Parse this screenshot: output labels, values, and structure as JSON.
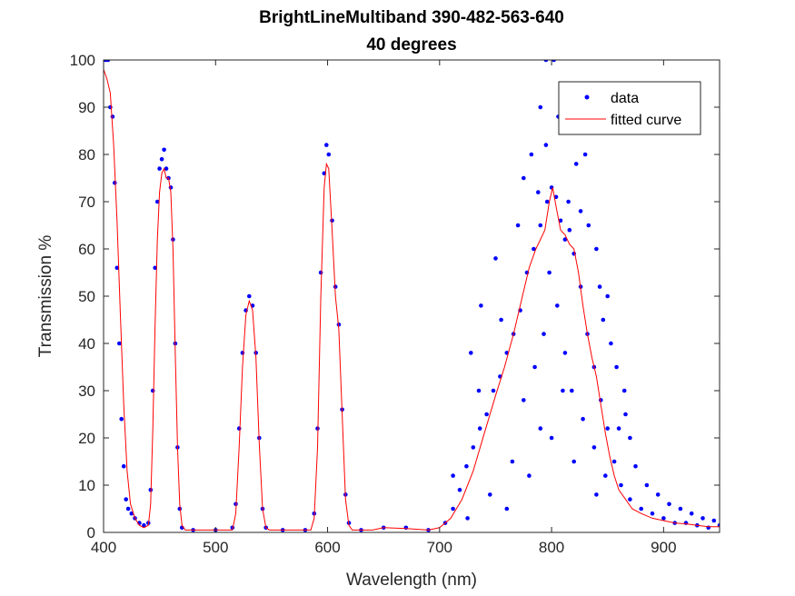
{
  "chart_data": {
    "type": "scatter",
    "title": [
      "BrightLineMultiband 390-482-563-640",
      "40 degrees"
    ],
    "xlabel": "Wavelength (nm)",
    "ylabel": "Transmission %",
    "xlim": [
      400,
      950
    ],
    "ylim": [
      0,
      100
    ],
    "xticks": [
      "400",
      "500",
      "600",
      "700",
      "800",
      "900"
    ],
    "yticks": [
      "0",
      "10",
      "20",
      "30",
      "40",
      "50",
      "60",
      "70",
      "80",
      "90",
      "100"
    ],
    "grid": false,
    "legend": {
      "placement": "top-right",
      "entries": [
        "data",
        "fitted curve"
      ]
    },
    "colors": {
      "data": "#0000ff",
      "fit": "#ff0000"
    },
    "series": [
      {
        "name": "data",
        "kind": "markers",
        "points": [
          [
            400,
            100
          ],
          [
            402,
            100
          ],
          [
            404,
            100
          ],
          [
            406,
            90
          ],
          [
            408,
            88
          ],
          [
            410,
            74
          ],
          [
            412,
            56
          ],
          [
            414,
            40
          ],
          [
            416,
            24
          ],
          [
            418,
            14
          ],
          [
            420,
            7
          ],
          [
            422,
            5
          ],
          [
            425,
            4
          ],
          [
            428,
            3
          ],
          [
            432,
            2
          ],
          [
            436,
            1.5
          ],
          [
            440,
            2
          ],
          [
            442,
            9
          ],
          [
            444,
            30
          ],
          [
            446,
            56
          ],
          [
            448,
            70
          ],
          [
            450,
            77
          ],
          [
            452,
            79
          ],
          [
            454,
            81
          ],
          [
            456,
            77
          ],
          [
            458,
            75
          ],
          [
            460,
            73
          ],
          [
            462,
            62
          ],
          [
            464,
            40
          ],
          [
            466,
            18
          ],
          [
            468,
            5
          ],
          [
            470,
            1
          ],
          [
            480,
            0.5
          ],
          [
            500,
            0.5
          ],
          [
            515,
            1
          ],
          [
            518,
            6
          ],
          [
            521,
            22
          ],
          [
            524,
            38
          ],
          [
            527,
            47
          ],
          [
            530,
            50
          ],
          [
            533,
            48
          ],
          [
            536,
            38
          ],
          [
            539,
            20
          ],
          [
            542,
            5
          ],
          [
            545,
            1
          ],
          [
            560,
            0.5
          ],
          [
            580,
            0.5
          ],
          [
            588,
            4
          ],
          [
            591,
            22
          ],
          [
            594,
            55
          ],
          [
            597,
            76
          ],
          [
            599,
            82
          ],
          [
            601,
            80
          ],
          [
            604,
            66
          ],
          [
            607,
            52
          ],
          [
            610,
            44
          ],
          [
            613,
            26
          ],
          [
            616,
            8
          ],
          [
            619,
            2
          ],
          [
            630,
            0.5
          ],
          [
            650,
            1
          ],
          [
            670,
            1
          ],
          [
            690,
            0.5
          ],
          [
            705,
            2
          ],
          [
            712,
            5
          ],
          [
            718,
            9
          ],
          [
            724,
            14
          ],
          [
            730,
            18
          ],
          [
            736,
            22
          ],
          [
            742,
            25
          ],
          [
            748,
            30
          ],
          [
            754,
            33
          ],
          [
            760,
            38
          ],
          [
            766,
            42
          ],
          [
            772,
            47
          ],
          [
            778,
            55
          ],
          [
            784,
            60
          ],
          [
            790,
            65
          ],
          [
            796,
            70
          ],
          [
            800,
            73
          ],
          [
            804,
            71
          ],
          [
            808,
            66
          ],
          [
            812,
            62
          ],
          [
            816,
            64
          ],
          [
            820,
            59
          ],
          [
            826,
            52
          ],
          [
            832,
            42
          ],
          [
            838,
            35
          ],
          [
            844,
            28
          ],
          [
            850,
            22
          ],
          [
            856,
            15
          ],
          [
            862,
            10
          ],
          [
            870,
            7
          ],
          [
            880,
            5
          ],
          [
            890,
            4
          ],
          [
            900,
            3
          ],
          [
            910,
            2
          ],
          [
            920,
            2
          ],
          [
            930,
            1.5
          ],
          [
            940,
            1
          ],
          [
            950,
            1.5
          ],
          [
            712,
            12
          ],
          [
            725,
            3
          ],
          [
            735,
            30
          ],
          [
            745,
            8
          ],
          [
            755,
            45
          ],
          [
            765,
            15
          ],
          [
            770,
            65
          ],
          [
            775,
            28
          ],
          [
            782,
            80
          ],
          [
            785,
            35
          ],
          [
            790,
            90
          ],
          [
            793,
            42
          ],
          [
            795,
            100
          ],
          [
            798,
            55
          ],
          [
            802,
            100
          ],
          [
            805,
            48
          ],
          [
            808,
            95
          ],
          [
            812,
            38
          ],
          [
            815,
            85
          ],
          [
            818,
            30
          ],
          [
            822,
            78
          ],
          [
            828,
            24
          ],
          [
            833,
            65
          ],
          [
            838,
            18
          ],
          [
            843,
            52
          ],
          [
            848,
            12
          ],
          [
            853,
            40
          ],
          [
            860,
            22
          ],
          [
            865,
            30
          ],
          [
            875,
            14
          ],
          [
            885,
            10
          ],
          [
            895,
            8
          ],
          [
            905,
            6
          ],
          [
            915,
            5
          ],
          [
            925,
            4
          ],
          [
            935,
            3
          ],
          [
            945,
            2.5
          ],
          [
            760,
            5
          ],
          [
            780,
            12
          ],
          [
            800,
            20
          ],
          [
            820,
            15
          ],
          [
            840,
            8
          ],
          [
            750,
            58
          ],
          [
            788,
            72
          ],
          [
            806,
            88
          ],
          [
            826,
            68
          ],
          [
            846,
            45
          ],
          [
            866,
            25
          ],
          [
            728,
            38
          ],
          [
            737,
            48
          ],
          [
            815,
            70
          ],
          [
            795,
            82
          ],
          [
            775,
            75
          ],
          [
            790,
            22
          ],
          [
            810,
            30
          ],
          [
            830,
            80
          ],
          [
            840,
            60
          ],
          [
            850,
            50
          ],
          [
            858,
            35
          ],
          [
            870,
            20
          ]
        ]
      },
      {
        "name": "fitted curve",
        "kind": "line",
        "points": [
          [
            400,
            98
          ],
          [
            403,
            96
          ],
          [
            406,
            93
          ],
          [
            409,
            82
          ],
          [
            412,
            66
          ],
          [
            415,
            46
          ],
          [
            418,
            27
          ],
          [
            421,
            13
          ],
          [
            424,
            6
          ],
          [
            428,
            3
          ],
          [
            432,
            1.5
          ],
          [
            436,
            1
          ],
          [
            440,
            1.5
          ],
          [
            442,
            6
          ],
          [
            444,
            22
          ],
          [
            446,
            44
          ],
          [
            448,
            62
          ],
          [
            450,
            72
          ],
          [
            452,
            76
          ],
          [
            454,
            77
          ],
          [
            456,
            75
          ],
          [
            458,
            75
          ],
          [
            460,
            72
          ],
          [
            462,
            60
          ],
          [
            464,
            38
          ],
          [
            466,
            18
          ],
          [
            468,
            6
          ],
          [
            470,
            1.5
          ],
          [
            473,
            0.5
          ],
          [
            500,
            0.5
          ],
          [
            515,
            0.5
          ],
          [
            518,
            4
          ],
          [
            521,
            18
          ],
          [
            524,
            35
          ],
          [
            527,
            46
          ],
          [
            530,
            49
          ],
          [
            533,
            47
          ],
          [
            536,
            37
          ],
          [
            539,
            19
          ],
          [
            542,
            5
          ],
          [
            545,
            1
          ],
          [
            548,
            0.5
          ],
          [
            585,
            0.5
          ],
          [
            588,
            3
          ],
          [
            591,
            18
          ],
          [
            594,
            50
          ],
          [
            597,
            73
          ],
          [
            599,
            78
          ],
          [
            601,
            77
          ],
          [
            604,
            64
          ],
          [
            607,
            50
          ],
          [
            610,
            43
          ],
          [
            613,
            25
          ],
          [
            616,
            7
          ],
          [
            619,
            1.5
          ],
          [
            622,
            0.5
          ],
          [
            640,
            0.5
          ],
          [
            650,
            1
          ],
          [
            670,
            0.8
          ],
          [
            690,
            0.5
          ],
          [
            700,
            1
          ],
          [
            710,
            3
          ],
          [
            720,
            7
          ],
          [
            730,
            13
          ],
          [
            740,
            21
          ],
          [
            750,
            29
          ],
          [
            758,
            35
          ],
          [
            766,
            42
          ],
          [
            774,
            50
          ],
          [
            780,
            56
          ],
          [
            786,
            60
          ],
          [
            790,
            62
          ],
          [
            794,
            64
          ],
          [
            798,
            70
          ],
          [
            801,
            73
          ],
          [
            804,
            69
          ],
          [
            808,
            64
          ],
          [
            812,
            63
          ],
          [
            816,
            61
          ],
          [
            820,
            60
          ],
          [
            824,
            55
          ],
          [
            828,
            48
          ],
          [
            832,
            42
          ],
          [
            836,
            37
          ],
          [
            840,
            33
          ],
          [
            844,
            27
          ],
          [
            848,
            21
          ],
          [
            852,
            16
          ],
          [
            856,
            12
          ],
          [
            860,
            9
          ],
          [
            866,
            7
          ],
          [
            872,
            5
          ],
          [
            880,
            4
          ],
          [
            890,
            3
          ],
          [
            900,
            2.5
          ],
          [
            910,
            2
          ],
          [
            920,
            1.8
          ],
          [
            930,
            1.5
          ],
          [
            940,
            1.2
          ],
          [
            950,
            1.2
          ]
        ]
      }
    ]
  }
}
